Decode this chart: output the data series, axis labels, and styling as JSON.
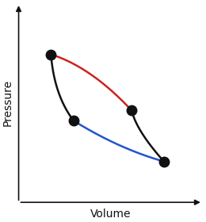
{
  "title": "",
  "xlabel": "Volume",
  "ylabel": "Pressure",
  "background_color": "#ffffff",
  "points": {
    "A": [
      1.5,
      3.2
    ],
    "B": [
      4.0,
      2.1
    ],
    "C": [
      2.2,
      1.9
    ],
    "D": [
      5.0,
      1.1
    ]
  },
  "red_color": "#cc2222",
  "blue_color": "#2255cc",
  "black_color": "#111111",
  "dot_color": "#111111",
  "dot_size": 9,
  "axis_color": "#111111",
  "label_fontsize": 10,
  "xlim": [
    0.5,
    6.2
  ],
  "ylim": [
    0.3,
    4.2
  ]
}
